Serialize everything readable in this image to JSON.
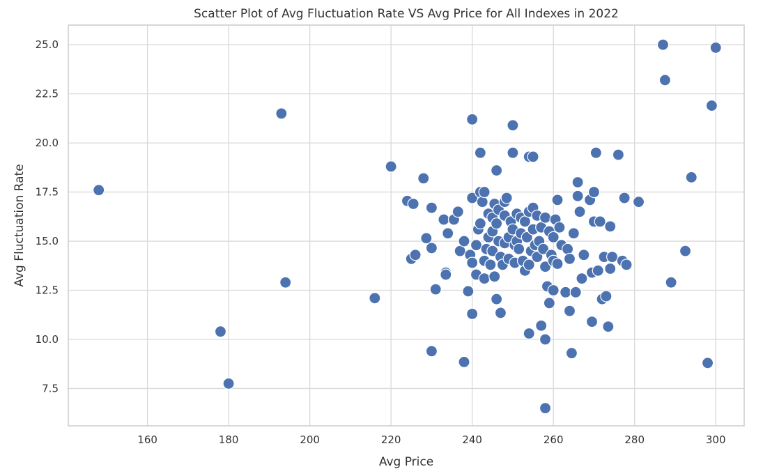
{
  "chart_data": {
    "type": "scatter",
    "title": "Scatter Plot of Avg Fluctuation Rate VS Avg Price for All Indexes in 2022",
    "xlabel": "Avg Price",
    "ylabel": "Avg Fluctuation Rate",
    "xlim": [
      140.5,
      307
    ],
    "ylim": [
      5.6,
      26.0
    ],
    "xticks": [
      "160",
      "180",
      "200",
      "220",
      "240",
      "260",
      "280",
      "300"
    ],
    "yticks": [
      "7.5",
      "10.0",
      "12.5",
      "15.0",
      "17.5",
      "20.0",
      "22.5",
      "25.0"
    ],
    "grid": true,
    "marker_color": "#4c72b0",
    "points": [
      {
        "x": 148,
        "y": 17.6
      },
      {
        "x": 178,
        "y": 10.4
      },
      {
        "x": 180,
        "y": 7.75
      },
      {
        "x": 193,
        "y": 21.5
      },
      {
        "x": 194,
        "y": 12.9
      },
      {
        "x": 216,
        "y": 12.1
      },
      {
        "x": 220,
        "y": 18.8
      },
      {
        "x": 224,
        "y": 17.05
      },
      {
        "x": 225,
        "y": 14.1
      },
      {
        "x": 225.5,
        "y": 16.9
      },
      {
        "x": 226,
        "y": 14.3
      },
      {
        "x": 228,
        "y": 18.2
      },
      {
        "x": 228.7,
        "y": 15.15
      },
      {
        "x": 230,
        "y": 16.7
      },
      {
        "x": 230,
        "y": 14.65
      },
      {
        "x": 230,
        "y": 9.4
      },
      {
        "x": 231,
        "y": 12.55
      },
      {
        "x": 233,
        "y": 16.1
      },
      {
        "x": 233.5,
        "y": 13.4
      },
      {
        "x": 233.5,
        "y": 13.3
      },
      {
        "x": 234,
        "y": 15.4
      },
      {
        "x": 235.5,
        "y": 16.1
      },
      {
        "x": 236.5,
        "y": 16.5
      },
      {
        "x": 237,
        "y": 14.5
      },
      {
        "x": 238,
        "y": 15.0
      },
      {
        "x": 238,
        "y": 8.85
      },
      {
        "x": 239,
        "y": 12.45
      },
      {
        "x": 239.5,
        "y": 14.3
      },
      {
        "x": 240,
        "y": 21.2
      },
      {
        "x": 240,
        "y": 17.2
      },
      {
        "x": 240,
        "y": 11.3
      },
      {
        "x": 240,
        "y": 13.9
      },
      {
        "x": 241,
        "y": 14.8
      },
      {
        "x": 241,
        "y": 13.3
      },
      {
        "x": 241.5,
        "y": 15.6
      },
      {
        "x": 242,
        "y": 19.5
      },
      {
        "x": 242,
        "y": 17.5
      },
      {
        "x": 242,
        "y": 15.9
      },
      {
        "x": 242.5,
        "y": 17.0
      },
      {
        "x": 243,
        "y": 17.5
      },
      {
        "x": 243,
        "y": 13.1
      },
      {
        "x": 243,
        "y": 14.0
      },
      {
        "x": 243.5,
        "y": 14.6
      },
      {
        "x": 244,
        "y": 16.4
      },
      {
        "x": 244,
        "y": 15.2
      },
      {
        "x": 244.5,
        "y": 13.8
      },
      {
        "x": 245,
        "y": 16.2
      },
      {
        "x": 245,
        "y": 15.5
      },
      {
        "x": 245,
        "y": 14.5
      },
      {
        "x": 245.5,
        "y": 13.2
      },
      {
        "x": 245.5,
        "y": 16.9
      },
      {
        "x": 246,
        "y": 18.6
      },
      {
        "x": 246,
        "y": 12.05
      },
      {
        "x": 246,
        "y": 15.9
      },
      {
        "x": 246.5,
        "y": 16.6
      },
      {
        "x": 246.5,
        "y": 15.0
      },
      {
        "x": 247,
        "y": 11.35
      },
      {
        "x": 247,
        "y": 14.2
      },
      {
        "x": 247.5,
        "y": 13.8
      },
      {
        "x": 248,
        "y": 16.3
      },
      {
        "x": 248,
        "y": 14.9
      },
      {
        "x": 248,
        "y": 17.0
      },
      {
        "x": 248.5,
        "y": 17.2
      },
      {
        "x": 249,
        "y": 15.2
      },
      {
        "x": 249,
        "y": 14.1
      },
      {
        "x": 249.5,
        "y": 16.0
      },
      {
        "x": 250,
        "y": 20.9
      },
      {
        "x": 250,
        "y": 19.5
      },
      {
        "x": 250,
        "y": 15.6
      },
      {
        "x": 250.5,
        "y": 14.8
      },
      {
        "x": 250.5,
        "y": 13.9
      },
      {
        "x": 251,
        "y": 16.4
      },
      {
        "x": 251,
        "y": 15.0
      },
      {
        "x": 251.5,
        "y": 14.6
      },
      {
        "x": 252,
        "y": 16.2
      },
      {
        "x": 252,
        "y": 15.4
      },
      {
        "x": 252.5,
        "y": 14.0
      },
      {
        "x": 253,
        "y": 16.0
      },
      {
        "x": 253,
        "y": 13.5
      },
      {
        "x": 253.5,
        "y": 15.2
      },
      {
        "x": 254,
        "y": 19.3
      },
      {
        "x": 254,
        "y": 16.5
      },
      {
        "x": 254,
        "y": 10.3
      },
      {
        "x": 254,
        "y": 13.8
      },
      {
        "x": 254.5,
        "y": 14.5
      },
      {
        "x": 255,
        "y": 19.3
      },
      {
        "x": 255,
        "y": 16.7
      },
      {
        "x": 255,
        "y": 15.6
      },
      {
        "x": 255.5,
        "y": 14.8
      },
      {
        "x": 256,
        "y": 16.3
      },
      {
        "x": 256,
        "y": 14.2
      },
      {
        "x": 256.5,
        "y": 15.0
      },
      {
        "x": 257,
        "y": 10.7
      },
      {
        "x": 257,
        "y": 15.7
      },
      {
        "x": 257.5,
        "y": 14.6
      },
      {
        "x": 258,
        "y": 16.2
      },
      {
        "x": 258,
        "y": 10.0
      },
      {
        "x": 258,
        "y": 6.5
      },
      {
        "x": 258,
        "y": 13.7
      },
      {
        "x": 258.5,
        "y": 12.7
      },
      {
        "x": 259,
        "y": 15.5
      },
      {
        "x": 259,
        "y": 11.85
      },
      {
        "x": 259.5,
        "y": 14.3
      },
      {
        "x": 260,
        "y": 15.2
      },
      {
        "x": 260,
        "y": 12.5
      },
      {
        "x": 260,
        "y": 14.0
      },
      {
        "x": 260.5,
        "y": 16.1
      },
      {
        "x": 261,
        "y": 17.1
      },
      {
        "x": 261,
        "y": 13.85
      },
      {
        "x": 261.5,
        "y": 15.7
      },
      {
        "x": 262,
        "y": 14.8
      },
      {
        "x": 263,
        "y": 12.4
      },
      {
        "x": 263.5,
        "y": 14.6
      },
      {
        "x": 264,
        "y": 11.45
      },
      {
        "x": 264,
        "y": 14.1
      },
      {
        "x": 264.5,
        "y": 9.3
      },
      {
        "x": 265,
        "y": 15.4
      },
      {
        "x": 265.5,
        "y": 12.4
      },
      {
        "x": 266,
        "y": 18.0
      },
      {
        "x": 266,
        "y": 17.3
      },
      {
        "x": 266.5,
        "y": 16.5
      },
      {
        "x": 267,
        "y": 13.1
      },
      {
        "x": 267.5,
        "y": 14.3
      },
      {
        "x": 269,
        "y": 17.1
      },
      {
        "x": 269.5,
        "y": 13.4
      },
      {
        "x": 269.5,
        "y": 10.9
      },
      {
        "x": 270,
        "y": 17.5
      },
      {
        "x": 270,
        "y": 16.0
      },
      {
        "x": 270.5,
        "y": 19.5
      },
      {
        "x": 271,
        "y": 13.5
      },
      {
        "x": 271.5,
        "y": 16.0
      },
      {
        "x": 272,
        "y": 12.05
      },
      {
        "x": 272.5,
        "y": 14.2
      },
      {
        "x": 273,
        "y": 12.2
      },
      {
        "x": 273.5,
        "y": 10.65
      },
      {
        "x": 274,
        "y": 15.75
      },
      {
        "x": 274,
        "y": 13.6
      },
      {
        "x": 274.5,
        "y": 14.2
      },
      {
        "x": 276,
        "y": 19.4
      },
      {
        "x": 277,
        "y": 14.0
      },
      {
        "x": 277.5,
        "y": 17.2
      },
      {
        "x": 278,
        "y": 13.8
      },
      {
        "x": 281,
        "y": 17.0
      },
      {
        "x": 287,
        "y": 25.0
      },
      {
        "x": 287.5,
        "y": 23.2
      },
      {
        "x": 289,
        "y": 12.9
      },
      {
        "x": 292.5,
        "y": 14.5
      },
      {
        "x": 294,
        "y": 18.25
      },
      {
        "x": 298,
        "y": 8.8
      },
      {
        "x": 299,
        "y": 21.9
      },
      {
        "x": 300,
        "y": 24.85
      }
    ]
  }
}
